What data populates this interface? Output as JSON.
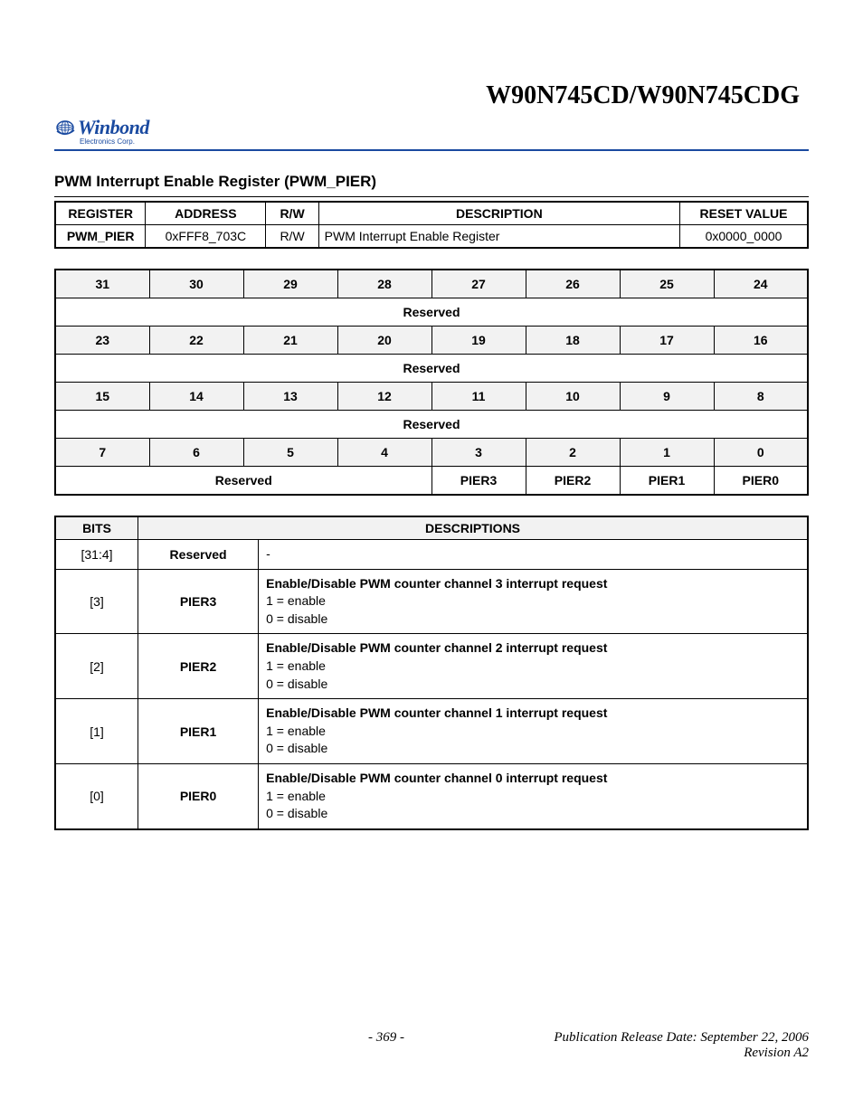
{
  "header": {
    "chip_title": "W90N745CD/W90N745CDG",
    "logo_text": "Winbond",
    "logo_subtitle": "Electronics Corp.",
    "logo_color": "#1a4aa0"
  },
  "section": {
    "title": "PWM Interrupt Enable Register (PWM_PIER)"
  },
  "reg_table": {
    "headers": [
      "REGISTER",
      "ADDRESS",
      "R/W",
      "DESCRIPTION",
      "RESET VALUE"
    ],
    "row": {
      "register": "PWM_PIER",
      "address": "0xFFF8_703C",
      "rw": "R/W",
      "description": "PWM Interrupt Enable Register",
      "reset": "0x0000_0000"
    }
  },
  "bit_table": {
    "rows": [
      {
        "bits": [
          "31",
          "30",
          "29",
          "28",
          "27",
          "26",
          "25",
          "24"
        ],
        "label": "Reserved",
        "span": 8
      },
      {
        "bits": [
          "23",
          "22",
          "21",
          "20",
          "19",
          "18",
          "17",
          "16"
        ],
        "label": "Reserved",
        "span": 8
      },
      {
        "bits": [
          "15",
          "14",
          "13",
          "12",
          "11",
          "10",
          "9",
          "8"
        ],
        "label": "Reserved",
        "span": 8
      },
      {
        "bits": [
          "7",
          "6",
          "5",
          "4",
          "3",
          "2",
          "1",
          "0"
        ],
        "cells": [
          {
            "label": "Reserved",
            "span": 4
          },
          {
            "label": "PIER3",
            "span": 1
          },
          {
            "label": "PIER2",
            "span": 1
          },
          {
            "label": "PIER1",
            "span": 1
          },
          {
            "label": "PIER0",
            "span": 1
          }
        ]
      }
    ]
  },
  "desc_table": {
    "headers": [
      "BITS",
      "DESCRIPTIONS"
    ],
    "rows": [
      {
        "bits": "[31:4]",
        "name": "Reserved",
        "head": "-",
        "l1": "",
        "l2": ""
      },
      {
        "bits": "[3]",
        "name": "PIER3",
        "head": "Enable/Disable PWM counter channel 3 interrupt request",
        "l1": "1 = enable",
        "l2": "0 = disable"
      },
      {
        "bits": "[2]",
        "name": "PIER2",
        "head": "Enable/Disable PWM counter channel 2 interrupt request",
        "l1": "1 = enable",
        "l2": "0 = disable"
      },
      {
        "bits": "[1]",
        "name": "PIER1",
        "head": "Enable/Disable PWM counter channel 1 interrupt request",
        "l1": "1 = enable",
        "l2": "0 = disable"
      },
      {
        "bits": "[0]",
        "name": "PIER0",
        "head": "Enable/Disable PWM counter channel 0 interrupt request",
        "l1": "1 = enable",
        "l2": "0 = disable"
      }
    ]
  },
  "footer": {
    "page": "- 369 -",
    "pub": "Publication Release Date: September 22, 2006",
    "rev": "Revision A2"
  }
}
